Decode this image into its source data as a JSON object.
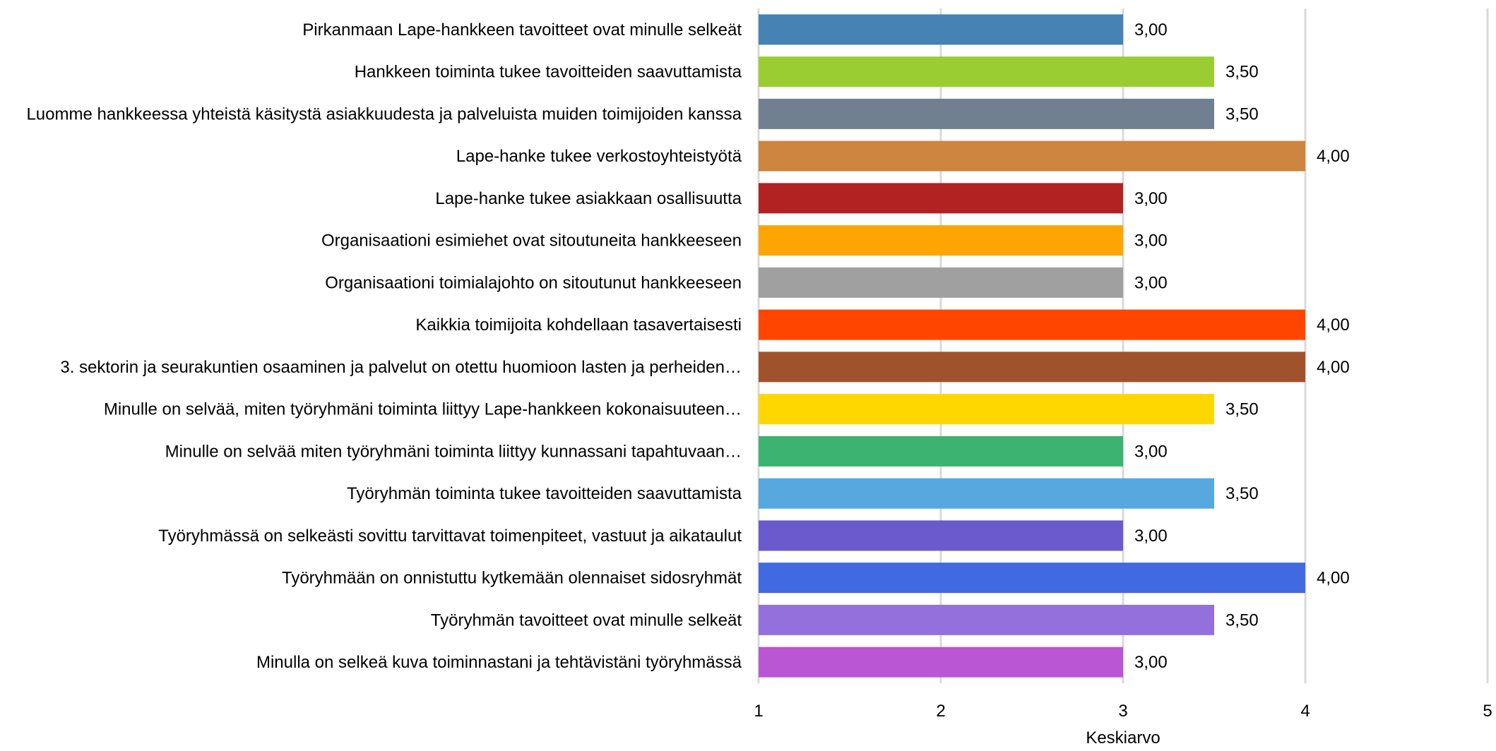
{
  "chart_data": {
    "type": "bar",
    "orientation": "horizontal",
    "categories": [
      "Pirkanmaan Lape-hankkeen tavoitteet ovat minulle selkeät",
      "Hankkeen toiminta tukee tavoitteiden saavuttamista",
      "Luomme hankkeessa yhteistä käsitystä asiakkuudesta ja palveluista muiden toimijoiden kanssa",
      "Lape-hanke tukee verkostoyhteistyötä",
      "Lape-hanke tukee asiakkaan osallisuutta",
      "Organisaationi esimiehet ovat sitoutuneita hankkeeseen",
      "Organisaationi toimialajohto on sitoutunut hankkeeseen",
      "Kaikkia toimijoita kohdellaan tasavertaisesti",
      "3. sektorin ja seurakuntien osaaminen ja palvelut on otettu huomioon lasten ja perheiden…",
      "Minulle on selvää, miten työryhmäni toiminta liittyy Lape-hankkeen kokonaisuuteen…",
      "Minulle on selvää miten työryhmäni toiminta liittyy kunnassani tapahtuvaan…",
      "Työryhmän toiminta tukee tavoitteiden saavuttamista",
      "Työryhmässä on selkeästi sovittu tarvittavat toimenpiteet, vastuut ja aikataulut",
      "Työryhmään on onnistuttu kytkemään olennaiset sidosryhmät",
      "Työryhmän tavoitteet ovat minulle selkeät",
      "Minulla on selkeä kuva toiminnastani ja tehtävistäni työryhmässä"
    ],
    "values": [
      3.0,
      3.5,
      3.5,
      4.0,
      3.0,
      3.0,
      3.0,
      4.0,
      4.0,
      3.5,
      3.0,
      3.5,
      3.0,
      4.0,
      3.5,
      3.0
    ],
    "value_labels": [
      "3,00",
      "3,50",
      "3,50",
      "4,00",
      "3,00",
      "3,00",
      "3,00",
      "4,00",
      "4,00",
      "3,50",
      "3,00",
      "3,50",
      "3,00",
      "4,00",
      "3,50",
      "3,00"
    ],
    "colors": [
      "#4682B4",
      "#9ACD32",
      "#708090",
      "#CD853F",
      "#B22222",
      "#FFA500",
      "#A0A0A0",
      "#FF4500",
      "#A0522D",
      "#FFD700",
      "#3CB371",
      "#56A8DF",
      "#6A5ACD",
      "#4169E1",
      "#9370DB",
      "#BA55D3"
    ],
    "xlim": [
      1,
      5
    ],
    "xticks": [
      1,
      2,
      3,
      4,
      5
    ],
    "xlabel": "Keskiarvo",
    "ylabel": "",
    "title": "",
    "grid": "vertical"
  }
}
